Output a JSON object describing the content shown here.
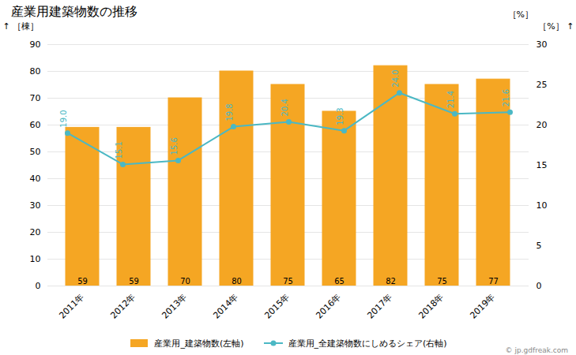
{
  "chart_data": {
    "type": "bar",
    "title": "産業用建築物数の推移",
    "categories": [
      "2011年",
      "2012年",
      "2013年",
      "2014年",
      "2015年",
      "2016年",
      "2017年",
      "2018年",
      "2019年"
    ],
    "ylabel": "［棟］",
    "y2label": "［%］",
    "ylim": [
      0,
      90
    ],
    "yticks": [
      0,
      10,
      20,
      30,
      40,
      50,
      60,
      70,
      80,
      90
    ],
    "y2lim": [
      0,
      30
    ],
    "y2ticks": [
      0,
      5,
      10,
      15,
      20,
      25,
      30
    ],
    "grid": true,
    "legend": "bottom",
    "data_labels": true,
    "annotations": [
      "［%］",
      "© jp.gdfreak.com"
    ],
    "series": [
      {
        "name": "産業用_建築物数(左軸)",
        "type": "bar",
        "color": "#F5A623",
        "values": [
          59,
          59,
          70,
          80,
          75,
          65,
          82,
          75,
          77
        ]
      },
      {
        "name": "産業用_全建築物数にしめるシェア(右軸)",
        "type": "line",
        "axis": "y2",
        "color": "#4BB8C4",
        "marker": "circle",
        "values": [
          19.0,
          15.1,
          15.6,
          19.8,
          20.4,
          19.3,
          24.0,
          21.4,
          21.6
        ],
        "value_labels": [
          "19.0",
          "15.1",
          "15.6",
          "19.8",
          "20.4",
          "19.3",
          "24.0",
          "21.4",
          "21.6"
        ]
      }
    ]
  }
}
